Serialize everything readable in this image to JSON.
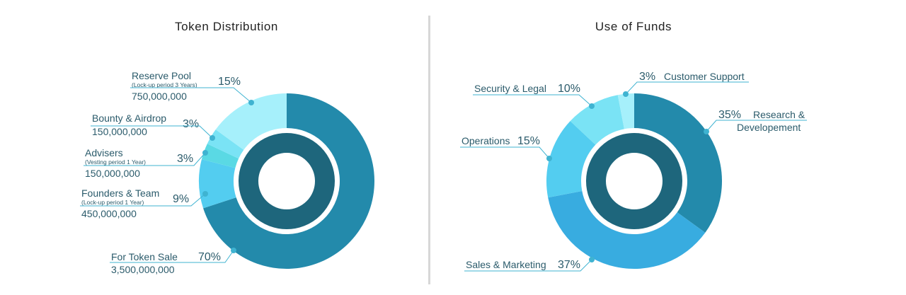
{
  "chart_data": [
    {
      "type": "pie",
      "title": "Token Distribution",
      "slices": [
        {
          "label": "For Token Sale",
          "note": "",
          "value": 70,
          "pct_label": "70%",
          "amount": "3,500,000,000",
          "color": "#238aab"
        },
        {
          "label": "Founders & Team",
          "note": "(Lock-up period 1 Year)",
          "value": 9,
          "pct_label": "9%",
          "amount": "450,000,000",
          "color": "#53cdf0"
        },
        {
          "label": "Advisers",
          "note": "(Vesting period 1 Year)",
          "value": 3,
          "pct_label": "3%",
          "amount": "150,000,000",
          "color": "#5ad9e4"
        },
        {
          "label": "Bounty & Airdrop",
          "note": "",
          "value": 3,
          "pct_label": "3%",
          "amount": "150,000,000",
          "color": "#7ae3f5"
        },
        {
          "label": "Reserve Pool",
          "note": "(Lock-up period 3 Years)",
          "value": 15,
          "pct_label": "15%",
          "amount": "750,000,000",
          "color": "#a6f0fb"
        }
      ]
    },
    {
      "type": "pie",
      "title": "Use of Funds",
      "slices": [
        {
          "label": "Research & Developement",
          "value": 35,
          "pct_label": "35%",
          "color": "#238aab"
        },
        {
          "label": "Sales & Marketing",
          "value": 37,
          "pct_label": "37%",
          "color": "#38ace0"
        },
        {
          "label": "Operations",
          "value": 15,
          "pct_label": "15%",
          "color": "#53cdf0"
        },
        {
          "label": "Security & Legal",
          "value": 10,
          "pct_label": "10%",
          "color": "#7ae3f5"
        },
        {
          "label": "Customer Support",
          "value": 3,
          "pct_label": "3%",
          "color": "#a6f0fb"
        }
      ]
    }
  ],
  "style": {
    "text_color": "#2b5b6b",
    "title_color": "#222222",
    "inner_ring_color": "#1e667c",
    "leader_color": "#3fb3d1"
  }
}
